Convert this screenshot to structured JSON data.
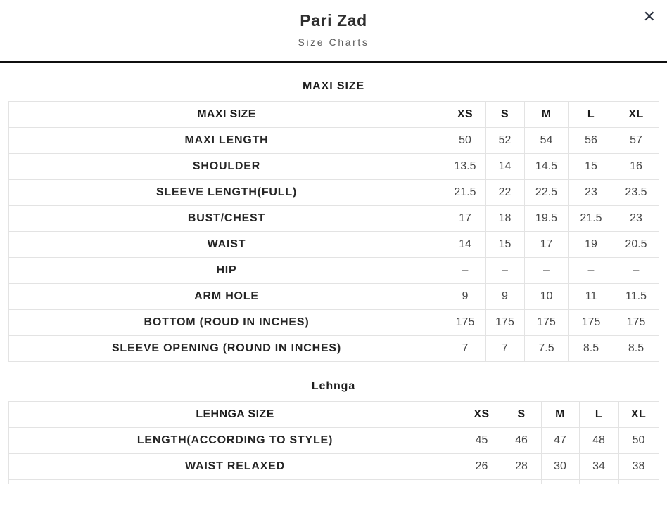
{
  "header": {
    "title": "Pari Zad",
    "subtitle": "Size Charts",
    "close_glyph": "✕"
  },
  "tables": [
    {
      "section_title": "MAXI SIZE",
      "header_row": {
        "label": "MAXI SIZE",
        "sizes": [
          "XS",
          "S",
          "M",
          "L",
          "XL"
        ]
      },
      "rows": [
        {
          "label": "MAXI LENGTH",
          "values": [
            "50",
            "52",
            "54",
            "56",
            "57"
          ]
        },
        {
          "label": "SHOULDER",
          "values": [
            "13.5",
            "14",
            "14.5",
            "15",
            "16"
          ]
        },
        {
          "label": "SLEEVE LENGTH(FULL)",
          "values": [
            "21.5",
            "22",
            "22.5",
            "23",
            "23.5"
          ]
        },
        {
          "label": "BUST/CHEST",
          "values": [
            "17",
            "18",
            "19.5",
            "21.5",
            "23"
          ]
        },
        {
          "label": "WAIST",
          "values": [
            "14",
            "15",
            "17",
            "19",
            "20.5"
          ]
        },
        {
          "label": "HIP",
          "values": [
            "–",
            "–",
            "–",
            "–",
            "–"
          ]
        },
        {
          "label": "ARM HOLE",
          "values": [
            "9",
            "9",
            "10",
            "11",
            "11.5"
          ]
        },
        {
          "label": "BOTTOM (ROUD IN INCHES)",
          "values": [
            "175",
            "175",
            "175",
            "175",
            "175"
          ]
        },
        {
          "label": "SLEEVE OPENING (ROUND IN INCHES)",
          "values": [
            "7",
            "7",
            "7.5",
            "8.5",
            "8.5"
          ]
        }
      ]
    },
    {
      "section_title": "Lehnga",
      "header_row": {
        "label": "LEHNGA SIZE",
        "sizes": [
          "XS",
          "S",
          "M",
          "L",
          "XL"
        ]
      },
      "rows": [
        {
          "label": "LENGTH(ACCORDING TO STYLE)",
          "values": [
            "45",
            "46",
            "47",
            "48",
            "50"
          ]
        },
        {
          "label": "WAIST RELAXED",
          "values": [
            "26",
            "28",
            "30",
            "34",
            "38"
          ]
        }
      ]
    }
  ],
  "colors": {
    "divider": "#0f0f0f",
    "table_border": "#e3e3e3",
    "label_text": "#252525",
    "value_text": "#484848",
    "subtitle_text": "#5c5c5c"
  }
}
